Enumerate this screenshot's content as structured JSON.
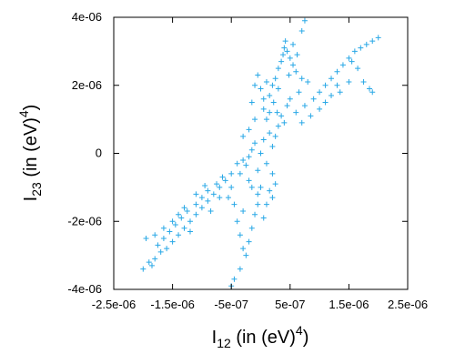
{
  "chart_data": {
    "type": "scatter",
    "title": "",
    "marker": "+",
    "color": "#29a8e6",
    "xlabel": {
      "base": "I",
      "sub": "12",
      "middle": " (in (eV)",
      "sup": "4",
      "end": ")"
    },
    "ylabel": {
      "base": "I",
      "sub": "23",
      "middle": " (in (eV)",
      "sup": "4",
      "end": ")"
    },
    "xlim": [
      -2.5e-06,
      2.5e-06
    ],
    "ylim": [
      -4e-06,
      4e-06
    ],
    "xticks": [
      {
        "value": -2.5e-06,
        "label": "-2.5e-06"
      },
      {
        "value": -1.5e-06,
        "label": "-1.5e-06"
      },
      {
        "value": -5e-07,
        "label": "-5e-07"
      },
      {
        "value": 5e-07,
        "label": "5e-07"
      },
      {
        "value": 1.5e-06,
        "label": "1.5e-06"
      },
      {
        "value": 2.5e-06,
        "label": "2.5e-06"
      }
    ],
    "yticks": [
      {
        "value": -4e-06,
        "label": "-4e-06"
      },
      {
        "value": -2e-06,
        "label": "-2e-06"
      },
      {
        "value": 0,
        "label": "0"
      },
      {
        "value": 2e-06,
        "label": "2e-06"
      },
      {
        "value": 4e-06,
        "label": "4e-06"
      }
    ],
    "grid": false,
    "legend": "none",
    "series": [
      {
        "points": [
          [
            -3e-07,
            -2e-07
          ],
          [
            -2.5e-07,
            -3.5e-07
          ],
          [
            -2e-07,
            -1e-07
          ],
          [
            -1.5e-07,
            1e-07
          ],
          [
            -1e-07,
            3e-07
          ],
          [
            -5e-08,
            -5e-07
          ],
          [
            0,
            0
          ],
          [
            5e-08,
            4e-07
          ],
          [
            1e-07,
            -3e-07
          ],
          [
            1.5e-07,
            6e-07
          ],
          [
            2e-07,
            2e-07
          ],
          [
            2.5e-07,
            5e-07
          ],
          [
            3e-07,
            8e-07
          ],
          [
            1e-07,
            1e-06
          ],
          [
            -1e-07,
            1e-06
          ],
          [
            0,
            -1e-06
          ],
          [
            -2e-07,
            -8e-07
          ],
          [
            2e-07,
            -6e-07
          ],
          [
            3.5e-07,
            1.1e-06
          ],
          [
            -3.5e-07,
            -6e-07
          ],
          [
            5e-08,
            1.3e-06
          ],
          [
            -5e-08,
            -1.2e-06
          ],
          [
            1.5e-07,
            1.2e-06
          ],
          [
            -1.5e-07,
            -1e-06
          ],
          [
            4e-07,
            9e-07
          ],
          [
            3e-07,
            2.5e-06
          ],
          [
            3.5e-07,
            2.7e-06
          ],
          [
            3.8e-07,
            2.9e-06
          ],
          [
            4e-07,
            3.1e-06
          ],
          [
            4.2e-07,
            3.3e-06
          ],
          [
            4.5e-07,
            3e-06
          ],
          [
            2e-07,
            2e-06
          ],
          [
            2.5e-07,
            2.2e-06
          ],
          [
            1.5e-07,
            1.7e-06
          ],
          [
            2.2e-07,
            1.5e-06
          ],
          [
            5e-07,
            2.8e-06
          ],
          [
            5.5e-07,
            2.6e-06
          ],
          [
            6e-07,
            2.4e-06
          ],
          [
            7e-07,
            2.2e-06
          ],
          [
            8e-07,
            2.1e-06
          ],
          [
            6.5e-07,
            1.8e-06
          ],
          [
            5e-07,
            1.6e-06
          ],
          [
            4.5e-07,
            1.4e-06
          ],
          [
            6e-07,
            1.2e-06
          ],
          [
            7.5e-07,
            1.4e-06
          ],
          [
            9e-07,
            1.6e-06
          ],
          [
            1e-06,
            1.8e-06
          ],
          [
            1.1e-06,
            2e-06
          ],
          [
            1.2e-06,
            2.2e-06
          ],
          [
            1.3e-06,
            2.4e-06
          ],
          [
            1.4e-06,
            2.6e-06
          ],
          [
            1.5e-06,
            2.8e-06
          ],
          [
            1.6e-06,
            3e-06
          ],
          [
            1.8e-06,
            3.2e-06
          ],
          [
            2e-06,
            3.4e-06
          ],
          [
            1.9e-06,
            3.3e-06
          ],
          [
            1.7e-06,
            3.1e-06
          ],
          [
            1.55e-06,
            2.7e-06
          ],
          [
            1.65e-06,
            2.5e-06
          ],
          [
            1.75e-06,
            2.1e-06
          ],
          [
            1.85e-06,
            1.9e-06
          ],
          [
            1.9e-06,
            1.8e-06
          ],
          [
            1.5e-06,
            2.1e-06
          ],
          [
            1.3e-06,
            2e-06
          ],
          [
            1.2e-06,
            1.7e-06
          ],
          [
            1e-06,
            1.3e-06
          ],
          [
            8.5e-07,
            1.1e-06
          ],
          [
            7e-07,
            9e-07
          ],
          [
            1.1e-06,
            1.5e-06
          ],
          [
            1.35e-06,
            1.8e-06
          ],
          [
            7e-07,
            3.6e-06
          ],
          [
            7.5e-07,
            3.9e-06
          ],
          [
            5.5e-07,
            3.2e-06
          ],
          [
            6.2e-07,
            2.9e-06
          ],
          [
            4.8e-07,
            2.3e-06
          ],
          [
            -1e-07,
            2e-06
          ],
          [
            -5e-08,
            2.3e-06
          ],
          [
            0,
            1.9e-06
          ],
          [
            -1.5e-07,
            1.5e-06
          ],
          [
            5e-08,
            1.6e-06
          ],
          [
            1e-07,
            2.1e-06
          ],
          [
            3e-07,
            1.9e-06
          ],
          [
            2.8e-07,
            1.2e-06
          ],
          [
            -2e-07,
            7e-07
          ],
          [
            -3e-07,
            5e-07
          ],
          [
            -4e-07,
            -3e-07
          ],
          [
            -5e-07,
            -6e-07
          ],
          [
            -6e-07,
            -8e-07
          ],
          [
            -7e-07,
            -1e-06
          ],
          [
            -8e-07,
            -1.2e-06
          ],
          [
            -9e-07,
            -1.4e-06
          ],
          [
            -1e-06,
            -1.6e-06
          ],
          [
            -1.1e-06,
            -1.8e-06
          ],
          [
            -1.2e-06,
            -2e-06
          ],
          [
            -1.3e-06,
            -2.2e-06
          ],
          [
            -1.4e-06,
            -2.4e-06
          ],
          [
            -1.5e-06,
            -2.6e-06
          ],
          [
            -1.6e-06,
            -2.8e-06
          ],
          [
            -1.7e-06,
            -2.9e-06
          ],
          [
            -1.8e-06,
            -3.1e-06
          ],
          [
            -1.9e-06,
            -3.2e-06
          ],
          [
            -2e-06,
            -3.4e-06
          ],
          [
            -1.85e-06,
            -3.3e-06
          ],
          [
            -1.75e-06,
            -2.7e-06
          ],
          [
            -1.65e-06,
            -2.5e-06
          ],
          [
            -1.55e-06,
            -2.3e-06
          ],
          [
            -1.45e-06,
            -2.1e-06
          ],
          [
            -1.35e-06,
            -1.9e-06
          ],
          [
            -1.25e-06,
            -1.7e-06
          ],
          [
            -1.1e-06,
            -1.5e-06
          ],
          [
            -1e-06,
            -1.3e-06
          ],
          [
            -9e-07,
            -1.1e-06
          ],
          [
            -7.5e-07,
            -9e-07
          ],
          [
            -6.5e-07,
            -7e-07
          ],
          [
            -1.2e-06,
            -2.3e-06
          ],
          [
            -1.3e-06,
            -1.6e-06
          ],
          [
            -1.4e-06,
            -1.8e-06
          ],
          [
            -1.5e-06,
            -2e-06
          ],
          [
            -1.65e-06,
            -2.2e-06
          ],
          [
            -1.8e-06,
            -2.4e-06
          ],
          [
            -1.95e-06,
            -2.5e-06
          ],
          [
            -1.1e-06,
            -1.2e-06
          ],
          [
            -9.5e-07,
            -9.5e-07
          ],
          [
            -8.5e-07,
            -1.7e-06
          ],
          [
            -7e-07,
            -1.3e-06
          ],
          [
            -5e-07,
            -1e-06
          ],
          [
            -4.5e-07,
            -1.5e-06
          ],
          [
            -4e-07,
            -2e-06
          ],
          [
            -3.5e-07,
            -2.4e-06
          ],
          [
            -3e-07,
            -2.8e-06
          ],
          [
            -2.5e-07,
            -3e-06
          ],
          [
            -2e-07,
            -2.6e-06
          ],
          [
            -1.5e-07,
            -2.2e-06
          ],
          [
            -1e-07,
            -1.8e-06
          ],
          [
            -5e-08,
            -1.5e-06
          ],
          [
            -3.5e-07,
            -3.4e-06
          ],
          [
            -4.5e-07,
            -3.7e-06
          ],
          [
            -5e-07,
            -3.9e-06
          ],
          [
            -3e-07,
            -1.7e-06
          ],
          [
            -5.5e-07,
            -1.3e-06
          ],
          [
            1e-07,
            -1.5e-06
          ],
          [
            5e-08,
            -1.9e-06
          ],
          [
            1.5e-07,
            -1.1e-06
          ],
          [
            2.5e-07,
            -9e-07
          ],
          [
            2e-07,
            -1.3e-06
          ]
        ]
      }
    ]
  }
}
